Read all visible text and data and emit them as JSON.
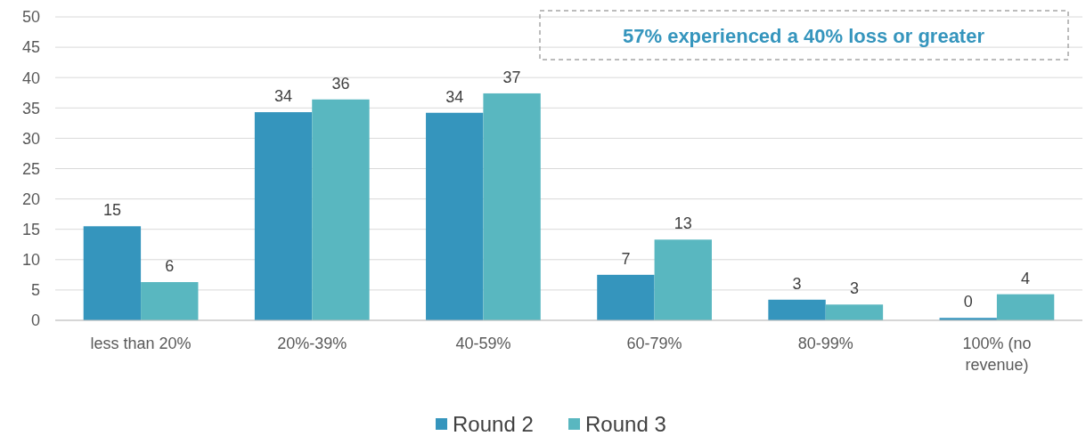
{
  "chart_data": {
    "type": "bar",
    "categories": [
      "less than 20%",
      "20%-39%",
      "40-59%",
      "60-79%",
      "80-99%",
      "100% (no revenue)"
    ],
    "series": [
      {
        "name": "Round 2",
        "color": "#3595bd",
        "values": [
          15.5,
          34.3,
          34.2,
          7.5,
          3.4,
          0.4
        ],
        "value_labels": [
          "15",
          "34",
          "34",
          "7",
          "3",
          "0"
        ]
      },
      {
        "name": "Round 3",
        "color": "#59b7c0",
        "values": [
          6.3,
          36.4,
          37.4,
          13.3,
          2.6,
          4.3
        ],
        "value_labels": [
          "6",
          "36",
          "37",
          "13",
          "3",
          "4"
        ]
      }
    ],
    "ylim": [
      0,
      50
    ],
    "yticks": [
      0,
      5,
      10,
      15,
      20,
      25,
      30,
      35,
      40,
      45,
      50
    ],
    "grid": "y",
    "legend": "bottom",
    "annotations": [
      "57% experienced a 40% loss or greater"
    ]
  }
}
